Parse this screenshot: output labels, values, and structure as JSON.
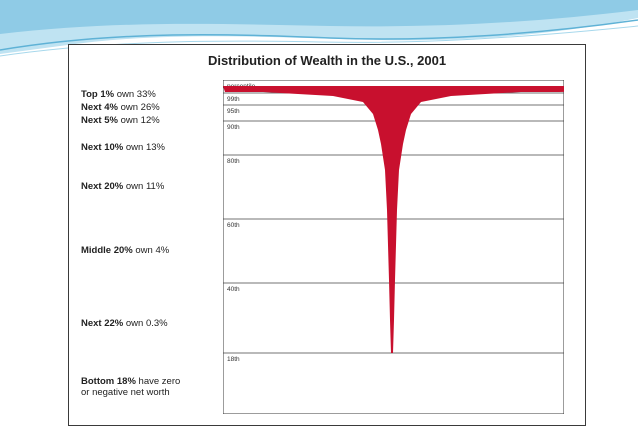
{
  "chart_data": {
    "type": "area",
    "title": "Distribution of Wealth in the U.S., 2001",
    "ylabel": "percentile",
    "y_ticks": [
      "99th",
      "95th",
      "90th",
      "80th",
      "60th",
      "40th",
      "18th"
    ],
    "groups": [
      {
        "lead": "Top 1%",
        "rest": "own 33%",
        "share": 33
      },
      {
        "lead": "Next 4%",
        "rest": "own 26%",
        "share": 26
      },
      {
        "lead": "Next 5%",
        "rest": "own 12%",
        "share": 12
      },
      {
        "lead": "Next 10%",
        "rest": "own 13%",
        "share": 13
      },
      {
        "lead": "Next 20%",
        "rest": "own 11%",
        "share": 11
      },
      {
        "lead": "Middle 20%",
        "rest": "own 4%",
        "share": 4
      },
      {
        "lead": "Next 22%",
        "rest": "own 0.3%",
        "share": 0.3
      },
      {
        "lead": "Bottom 18%",
        "rest": "have zero",
        "rest2": "or negative net worth",
        "share": 0
      }
    ],
    "colors": {
      "fill": "#c8102e"
    }
  }
}
